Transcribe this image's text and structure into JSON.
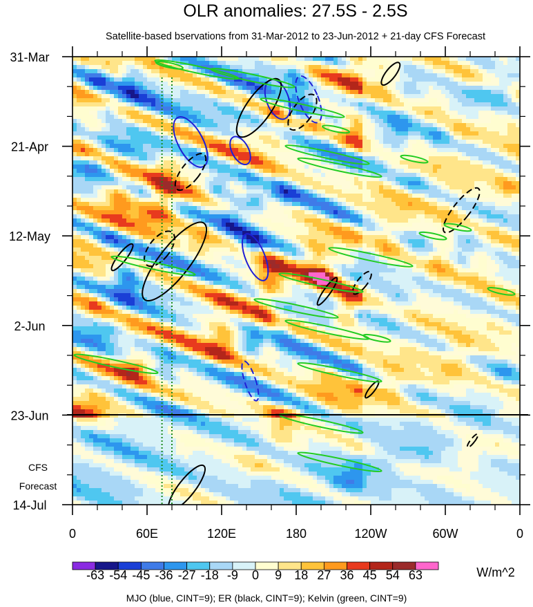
{
  "chart_data": {
    "type": "heatmap",
    "title": "OLR anomalies: 27.5S - 2.5S",
    "subtitle": "Satellite-based bservations from 31-Mar-2012 to 23-Jun-2012 + 21-day CFS Forecast",
    "x_ticks": [
      "0",
      "60E",
      "120E",
      "180",
      "120W",
      "60W",
      "0"
    ],
    "x_tick_lon": [
      0,
      60,
      120,
      180,
      240,
      300,
      360
    ],
    "y_ticks": [
      "31-Mar",
      "21-Apr",
      "12-May",
      "2-Jun",
      "23-Jun",
      "14-Jul"
    ],
    "y_tick_day": [
      0,
      21,
      42,
      63,
      84,
      105
    ],
    "xlim": [
      0,
      360
    ],
    "ylim_days": [
      0,
      105
    ],
    "forecast_start": "23-Jun",
    "forecast_label": [
      "CFS",
      "Forecast"
    ],
    "colorbar": {
      "levels": [
        "-63",
        "-54",
        "-45",
        "-36",
        "-27",
        "-18",
        "-9",
        "0",
        "9",
        "18",
        "27",
        "36",
        "45",
        "54",
        "63"
      ],
      "colors": [
        "#8a2be2",
        "#16168a",
        "#1a3fd6",
        "#3f7be8",
        "#2d96ee",
        "#4fc7f0",
        "#a9d7f6",
        "#d8f2f8",
        "#fffdd0",
        "#ffe58a",
        "#ffc33a",
        "#ff9a1e",
        "#e83a1e",
        "#b3261a",
        "#9b2b2b",
        "#ff66cc"
      ],
      "units": "W/m^2"
    },
    "footnote": "MJO (blue, CINT=9); ER (black, CINT=9); Kelvin (green, CINT=9)",
    "mjo_color": "#1f1fd6",
    "er_color": "#000000",
    "kelvin_color": "#22cc22",
    "dotted_line_color": "#1a8a1a"
  }
}
